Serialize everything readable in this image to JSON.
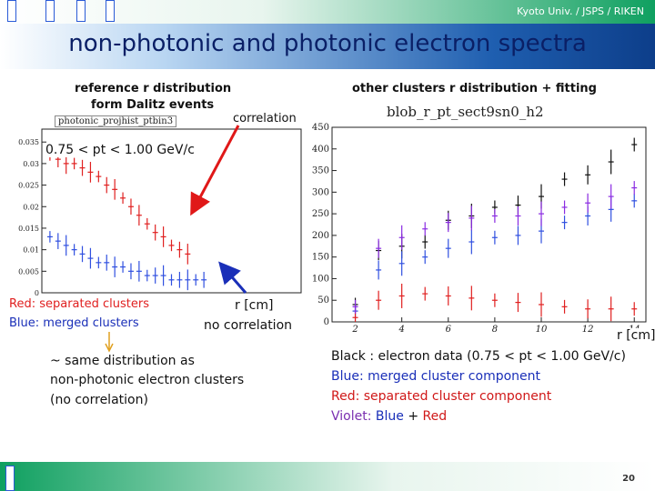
{
  "header": {
    "affiliation": "Kyoto Univ. / JSPS / RIKEN",
    "title": "non-photonic and photonic electron spectra"
  },
  "left": {
    "caption_line1": "reference r distribution",
    "caption_line2": "form Dalitz events",
    "correlation": "correlation",
    "hist_title": "photonic_projhist_ptbin3",
    "pt_range": "0.75 < pt < 1.00 GeV/c",
    "legend_red": "Red:  separated clusters",
    "legend_blue": "Blue: merged clusters",
    "axis_unit": "r [cm]",
    "no_correlation": "no correlation",
    "note_line1": "~ same distribution as",
    "note_line2": "non-photonic electron clusters",
    "note_line3": "(no correlation)"
  },
  "right": {
    "caption": "other clusters r distribution + fitting",
    "hist_title": "blob_r_pt_sect9sn0_h2",
    "axis_unit": "r [cm]",
    "desc_black": "Black : electron data (0.75 < pt < 1.00 GeV/c)",
    "desc_blue": "Blue: merged cluster component",
    "desc_red": "Red:  separated cluster component",
    "desc_violet_prefix": "Violet: ",
    "desc_violet_blue": "Blue",
    "desc_violet_plus": " + ",
    "desc_violet_red": "Red"
  },
  "chart_data": [
    {
      "type": "scatter",
      "title": "photonic_projhist_ptbin3",
      "xlim": [
        0,
        16
      ],
      "ylim": [
        0,
        0.038
      ],
      "y_ticks": [
        "0",
        "0.005",
        "0.01",
        "0.015",
        "0.02",
        "0.025",
        "0.03",
        "0.035"
      ],
      "series": [
        {
          "name": "separated clusters",
          "color": "#e02020",
          "x": [
            0.5,
            1,
            1.5,
            2,
            2.5,
            3,
            3.5,
            4,
            4.5,
            5,
            5.5,
            6,
            6.5,
            7,
            7.5,
            8,
            8.5,
            9
          ],
          "y": [
            0.032,
            0.031,
            0.03,
            0.03,
            0.029,
            0.028,
            0.027,
            0.025,
            0.024,
            0.022,
            0.02,
            0.018,
            0.016,
            0.014,
            0.013,
            0.011,
            0.01,
            0.009
          ]
        },
        {
          "name": "merged clusters",
          "color": "#3050e0",
          "x": [
            0.5,
            1,
            1.5,
            2,
            2.5,
            3,
            3.5,
            4,
            4.5,
            5,
            5.5,
            6,
            6.5,
            7,
            7.5,
            8,
            8.5,
            9,
            9.5,
            10
          ],
          "y": [
            0.013,
            0.012,
            0.011,
            0.01,
            0.009,
            0.008,
            0.007,
            0.007,
            0.006,
            0.006,
            0.005,
            0.005,
            0.004,
            0.004,
            0.004,
            0.003,
            0.003,
            0.003,
            0.003,
            0.003
          ]
        }
      ]
    },
    {
      "type": "scatter",
      "title": "blob_r_pt_sect9sn0_h2",
      "xlabel": "r [cm]",
      "xlim": [
        1,
        14.5
      ],
      "ylim": [
        0,
        450
      ],
      "x_ticks": [
        "2",
        "4",
        "6",
        "8",
        "10",
        "12",
        "14"
      ],
      "y_ticks": [
        "0",
        "50",
        "100",
        "150",
        "200",
        "250",
        "300",
        "350",
        "400",
        "450"
      ],
      "series": [
        {
          "name": "electron data",
          "color": "#111111",
          "x": [
            2,
            3,
            4,
            5,
            6,
            7,
            8,
            9,
            10,
            11,
            12,
            13,
            14
          ],
          "y": [
            40,
            165,
            175,
            185,
            235,
            245,
            265,
            270,
            290,
            330,
            340,
            370,
            410
          ]
        },
        {
          "name": "merged cluster component",
          "color": "#3050e0",
          "x": [
            2,
            3,
            4,
            5,
            6,
            7,
            8,
            9,
            10,
            11,
            12,
            13,
            14
          ],
          "y": [
            25,
            120,
            135,
            150,
            170,
            185,
            195,
            200,
            210,
            230,
            245,
            260,
            280
          ]
        },
        {
          "name": "separated cluster component",
          "color": "#e02020",
          "x": [
            2,
            3,
            4,
            5,
            6,
            7,
            8,
            9,
            10,
            11,
            12,
            13,
            14
          ],
          "y": [
            10,
            50,
            60,
            65,
            60,
            55,
            50,
            45,
            40,
            35,
            30,
            30,
            30
          ]
        },
        {
          "name": "Blue + Red",
          "color": "#8a2be2",
          "x": [
            2,
            3,
            4,
            5,
            6,
            7,
            8,
            9,
            10,
            11,
            12,
            13,
            14
          ],
          "y": [
            35,
            170,
            195,
            215,
            230,
            240,
            245,
            245,
            250,
            265,
            275,
            290,
            310
          ]
        }
      ]
    }
  ]
}
